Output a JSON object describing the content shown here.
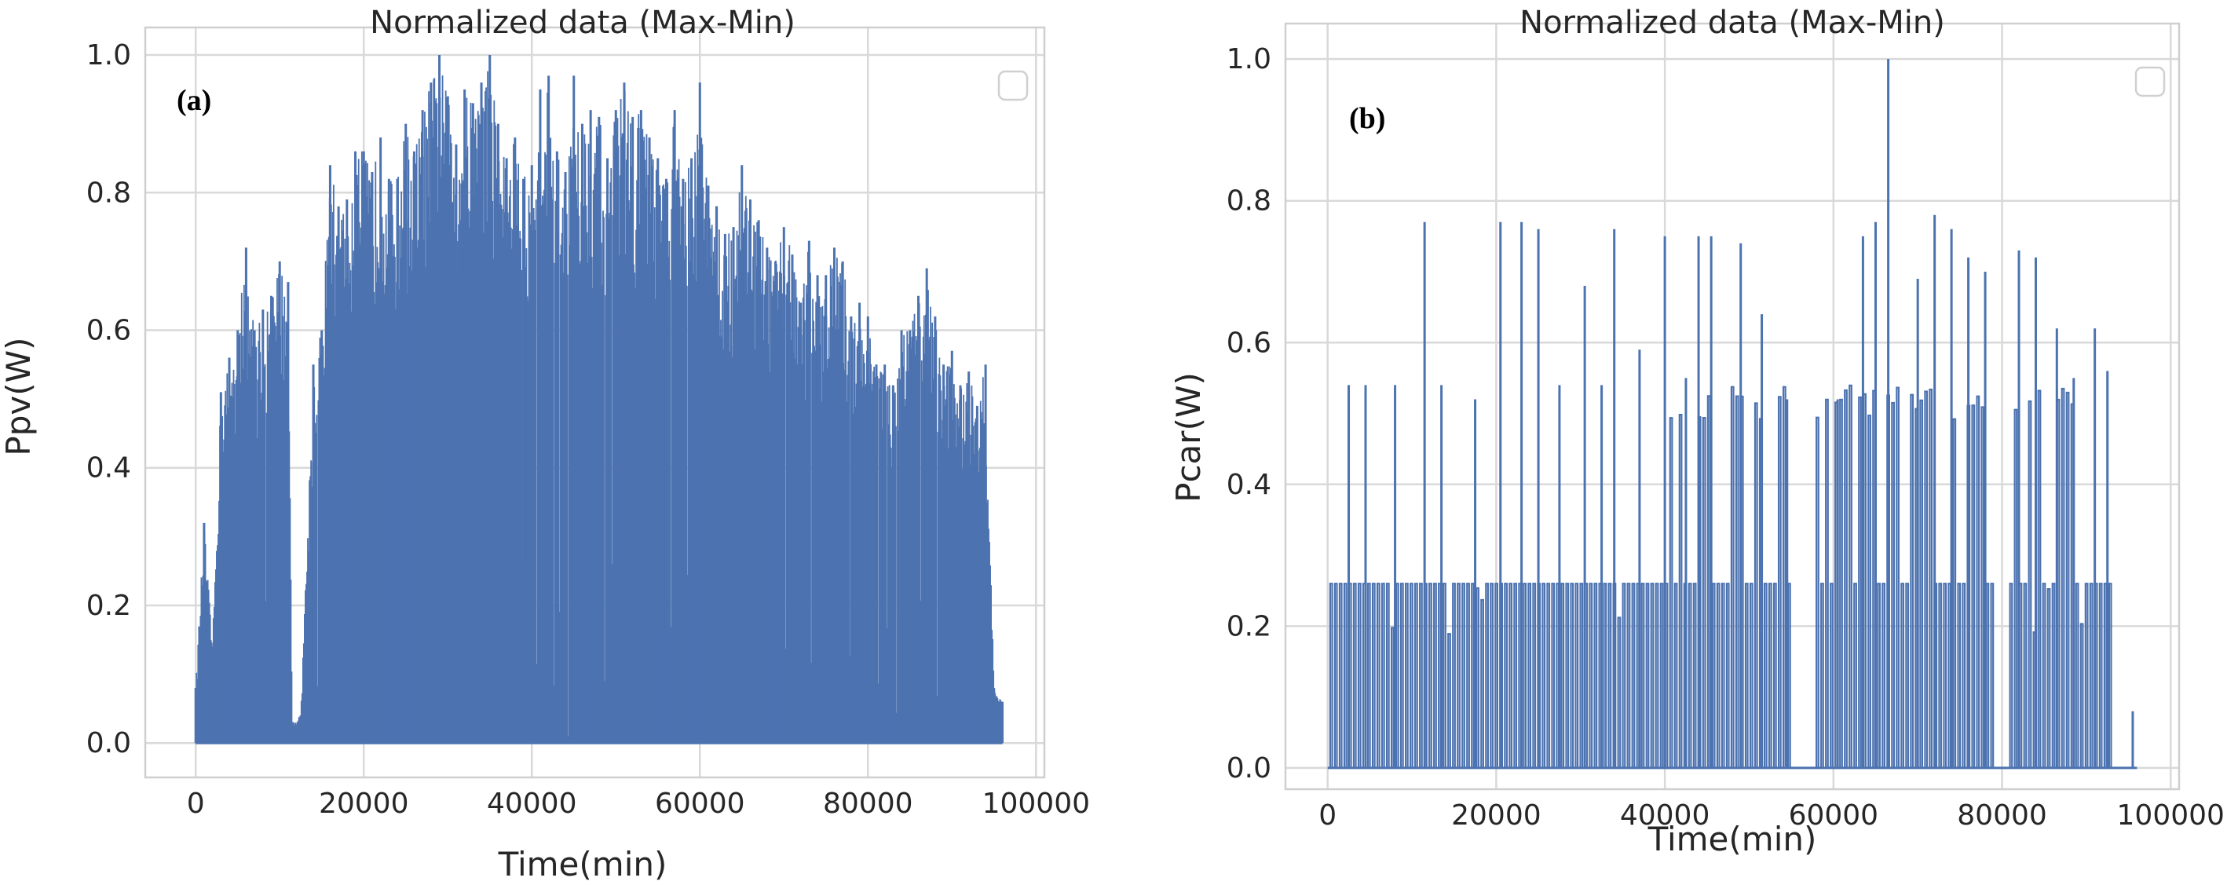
{
  "chart_data": [
    {
      "type": "line",
      "panel_label": "(a)",
      "title": "Normalized data (Max-Min)",
      "xlabel": "Time(min)",
      "ylabel": "Ppv(W)",
      "xlim": [
        -6000,
        101000
      ],
      "ylim": [
        -0.05,
        1.04
      ],
      "xticks": [
        0,
        20000,
        40000,
        60000,
        80000,
        100000
      ],
      "yticks": [
        0.0,
        0.2,
        0.4,
        0.6,
        0.8,
        1.0
      ],
      "xtick_labels": [
        "0",
        "20000",
        "40000",
        "60000",
        "80000",
        "100000"
      ],
      "ytick_labels": [
        "0.0",
        "0.2",
        "0.4",
        "0.6",
        "0.8",
        "1.0"
      ],
      "grid": true,
      "legend": "top-right (empty)",
      "series": [
        {
          "name": "Ppv",
          "color": "#4c72b0",
          "x_range": [
            0,
            96000
          ],
          "envelope_x": [
            0,
            1000,
            2000,
            3000,
            4000,
            5000,
            6000,
            7000,
            8000,
            9000,
            10000,
            11000,
            11500,
            12500,
            14000,
            15000,
            16000,
            17000,
            18000,
            19000,
            20000,
            21000,
            22000,
            23000,
            24000,
            25000,
            26000,
            27000,
            28000,
            29000,
            30000,
            31000,
            32000,
            33000,
            34000,
            35000,
            36000,
            37000,
            38000,
            39000,
            40000,
            41000,
            42000,
            43000,
            44000,
            45000,
            46000,
            47000,
            48000,
            49000,
            50000,
            51000,
            52000,
            53000,
            54000,
            55000,
            56000,
            57000,
            58000,
            59000,
            60000,
            61000,
            62000,
            63000,
            64000,
            65000,
            66000,
            67000,
            68000,
            69000,
            70000,
            71000,
            72000,
            73000,
            74000,
            75000,
            76000,
            77000,
            78000,
            79000,
            80000,
            81000,
            82000,
            83000,
            84000,
            85000,
            86000,
            87000,
            88000,
            89000,
            90000,
            91000,
            92000,
            93000,
            94000,
            95000,
            96000
          ],
          "envelope_y": [
            0.08,
            0.32,
            0.14,
            0.51,
            0.56,
            0.6,
            0.72,
            0.6,
            0.63,
            0.65,
            0.7,
            0.67,
            0.03,
            0.04,
            0.55,
            0.6,
            0.84,
            0.78,
            0.79,
            0.86,
            0.86,
            0.83,
            0.88,
            0.82,
            0.82,
            0.9,
            0.86,
            0.92,
            0.96,
            1.0,
            0.94,
            0.87,
            0.95,
            0.93,
            0.96,
            1.0,
            0.9,
            0.85,
            0.88,
            0.82,
            0.84,
            0.95,
            0.97,
            0.86,
            0.83,
            0.97,
            0.9,
            0.92,
            0.91,
            0.85,
            0.92,
            0.96,
            0.91,
            0.92,
            0.88,
            0.85,
            0.82,
            0.92,
            0.82,
            0.85,
            0.96,
            0.81,
            0.78,
            0.74,
            0.75,
            0.84,
            0.79,
            0.76,
            0.72,
            0.7,
            0.75,
            0.71,
            0.64,
            0.73,
            0.68,
            0.68,
            0.72,
            0.7,
            0.62,
            0.64,
            0.62,
            0.55,
            0.55,
            0.52,
            0.6,
            0.6,
            0.65,
            0.69,
            0.62,
            0.55,
            0.57,
            0.52,
            0.54,
            0.49,
            0.55,
            0.08,
            0.06
          ]
        }
      ]
    },
    {
      "type": "line",
      "panel_label": "(b)",
      "title": "Normalized data (Max-Min)",
      "xlabel": "Time(min)",
      "ylabel": "Pcar(W)",
      "xlim": [
        -5000,
        101000
      ],
      "ylim": [
        -0.03,
        1.05
      ],
      "xticks": [
        0,
        20000,
        40000,
        60000,
        80000,
        100000
      ],
      "yticks": [
        0.0,
        0.2,
        0.4,
        0.6,
        0.8,
        1.0
      ],
      "xtick_labels": [
        "0",
        "20000",
        "40000",
        "60000",
        "80000",
        "100000"
      ],
      "ytick_labels": [
        "0.0",
        "0.2",
        "0.4",
        "0.6",
        "0.8",
        "1.0"
      ],
      "grid": true,
      "legend": "top-right (empty)",
      "series": [
        {
          "name": "Pcar",
          "color": "#4c72b0",
          "baseline_level": 0.26,
          "spikes": [
            {
              "x": 2500,
              "y": 0.54
            },
            {
              "x": 4500,
              "y": 0.54
            },
            {
              "x": 8000,
              "y": 0.54
            },
            {
              "x": 11500,
              "y": 0.77
            },
            {
              "x": 13500,
              "y": 0.54
            },
            {
              "x": 17500,
              "y": 0.52
            },
            {
              "x": 20500,
              "y": 0.77
            },
            {
              "x": 23000,
              "y": 0.77
            },
            {
              "x": 25000,
              "y": 0.76
            },
            {
              "x": 27500,
              "y": 0.54
            },
            {
              "x": 30500,
              "y": 0.68
            },
            {
              "x": 32500,
              "y": 0.54
            },
            {
              "x": 34000,
              "y": 0.76
            },
            {
              "x": 37000,
              "y": 0.59
            },
            {
              "x": 40000,
              "y": 0.75
            },
            {
              "x": 42500,
              "y": 0.55
            },
            {
              "x": 44000,
              "y": 0.75
            },
            {
              "x": 45500,
              "y": 0.75
            },
            {
              "x": 49000,
              "y": 0.74
            },
            {
              "x": 51500,
              "y": 0.64
            },
            {
              "x": 54500,
              "y": 0.52
            },
            {
              "x": 60500,
              "y": 0.52
            },
            {
              "x": 63500,
              "y": 0.75
            },
            {
              "x": 65000,
              "y": 0.77
            },
            {
              "x": 66500,
              "y": 1.0
            },
            {
              "x": 70000,
              "y": 0.69
            },
            {
              "x": 72000,
              "y": 0.78
            },
            {
              "x": 74000,
              "y": 0.76
            },
            {
              "x": 76000,
              "y": 0.72
            },
            {
              "x": 78000,
              "y": 0.7
            },
            {
              "x": 82000,
              "y": 0.73
            },
            {
              "x": 84000,
              "y": 0.72
            },
            {
              "x": 86500,
              "y": 0.62
            },
            {
              "x": 88500,
              "y": 0.55
            },
            {
              "x": 91000,
              "y": 0.62
            },
            {
              "x": 92500,
              "y": 0.56
            },
            {
              "x": 95500,
              "y": 0.08
            }
          ],
          "gaps": [
            [
              55000,
              57500
            ],
            [
              79000,
              80500
            ]
          ],
          "x_end": 96000
        }
      ]
    }
  ]
}
